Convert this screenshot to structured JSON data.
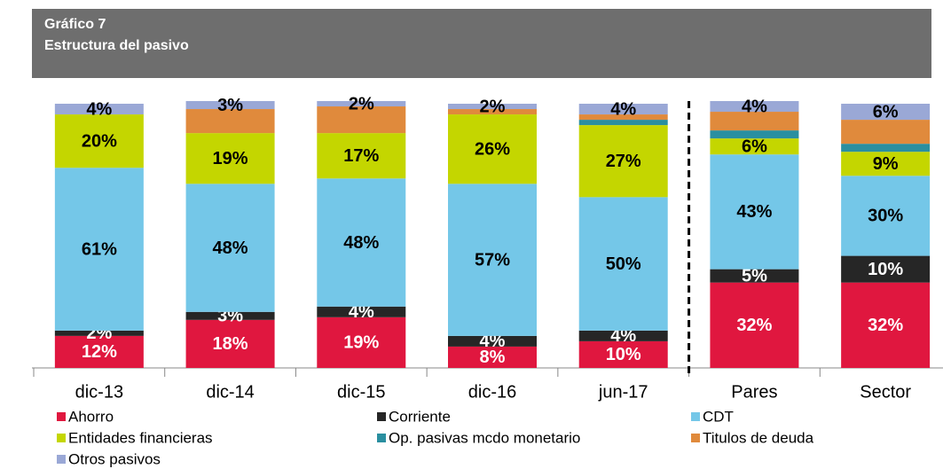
{
  "chart_data": {
    "type": "stacked_bar",
    "title": "Gráfico 7",
    "subtitle": "Estructura del pasivo",
    "categories": [
      "dic-13",
      "dic-14",
      "dic-15",
      "dic-16",
      "jun-17",
      "Pares",
      "Sector"
    ],
    "ylim": [
      0,
      100
    ],
    "series": [
      {
        "name": "Ahorro",
        "color": "#e0173f",
        "values": [
          12,
          18,
          19,
          8,
          10,
          32,
          32
        ],
        "value_labels": [
          "12%",
          "18%",
          "19%",
          "8%",
          "10%",
          "32%",
          "32%"
        ]
      },
      {
        "name": "Corriente",
        "color": "#262626",
        "values": [
          2,
          3,
          4,
          4,
          4,
          5,
          10
        ],
        "value_labels": [
          "2%",
          "3%",
          "4%",
          "4%",
          "4%",
          "5%",
          "10%"
        ]
      },
      {
        "name": "CDT",
        "color": "#74c7e8",
        "values": [
          61,
          48,
          48,
          57,
          50,
          43,
          30
        ],
        "value_labels": [
          "61%",
          "48%",
          "48%",
          "57%",
          "50%",
          "43%",
          "30%"
        ]
      },
      {
        "name": "Entidades financieras",
        "color": "#c4d600",
        "values": [
          20,
          19,
          17,
          26,
          27,
          6,
          9
        ],
        "value_labels": [
          "20%",
          "19%",
          "17%",
          "26%",
          "27%",
          "6%",
          "9%"
        ]
      },
      {
        "name": "Op. pasivas mcdo monetario",
        "color": "#2a8fa0",
        "values": [
          0,
          0,
          0,
          0,
          2,
          3,
          3
        ]
      },
      {
        "name": "Titulos de deuda",
        "color": "#e08a3c",
        "values": [
          0,
          9,
          10,
          2,
          2,
          7,
          9
        ]
      },
      {
        "name": "Otros pasivos",
        "color": "#9aa8d6",
        "values": [
          4,
          3,
          2,
          2,
          4,
          4,
          6
        ],
        "value_labels": [
          "4%",
          "3%",
          "2%",
          "2%",
          "4%",
          "4%",
          "6%"
        ]
      }
    ]
  }
}
